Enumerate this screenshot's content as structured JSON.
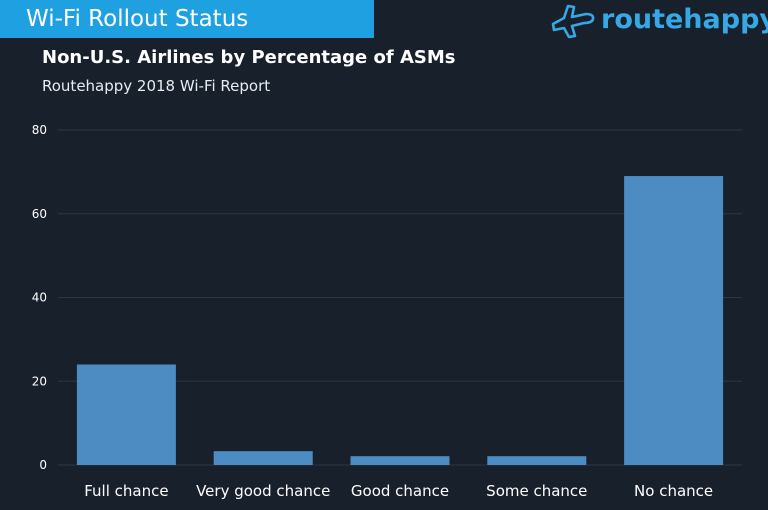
{
  "header": {
    "banner_title": "Wi-Fi Rollout Status",
    "banner_color": "#1fa0e0",
    "logo_text": "routehappy",
    "logo_icon": "airplane-icon",
    "logo_color": "#35a8e6"
  },
  "background_color": "#18202b",
  "bar_color": "#4d8cc3",
  "chart_data": {
    "type": "bar",
    "title": "Non-U.S. Airlines by Percentage of ASMs",
    "subtitle": "Routehappy 2018 Wi-Fi Report",
    "xlabel": "",
    "ylabel": "",
    "categories": [
      "Full chance",
      "Very good chance",
      "Good chance",
      "Some chance",
      "No chance"
    ],
    "values": [
      24,
      3.3,
      2.1,
      2.1,
      69
    ],
    "ylim": [
      0,
      80
    ],
    "yticks": [
      0,
      20,
      40,
      60,
      80
    ],
    "grid": true,
    "legend": "none"
  }
}
